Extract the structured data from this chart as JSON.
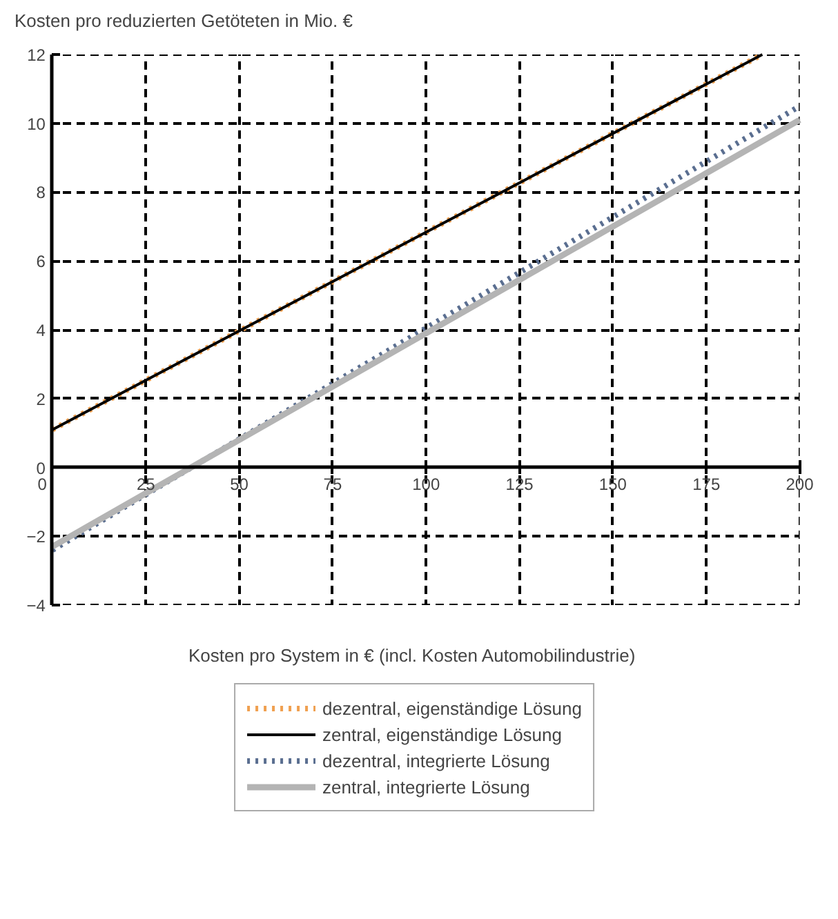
{
  "chart_data": {
    "type": "line",
    "xlabel": "Kosten pro System in € (incl. Kosten  Automobilindustrie)",
    "ylabel": "Kosten pro reduzierten Getöteten in Mio. €",
    "xlim": [
      0,
      200
    ],
    "ylim": [
      -4,
      12
    ],
    "xticks": [
      0,
      25,
      50,
      75,
      100,
      125,
      150,
      175,
      200
    ],
    "yticks": [
      -4,
      -2,
      0,
      2,
      4,
      6,
      8,
      10,
      12
    ],
    "grid": true,
    "legend": "bottom",
    "marker": "none",
    "series": [
      {
        "name": "dezentral, eigenständige Lösung",
        "color": "#f0a050",
        "line_style": "dotted",
        "x": [
          0,
          190
        ],
        "values": [
          1.1,
          12
        ]
      },
      {
        "name": "zentral, eigenständige Lösung",
        "color": "#000000",
        "line_style": "solid",
        "x": [
          0,
          190
        ],
        "values": [
          1.1,
          12
        ]
      },
      {
        "name": "dezentral, integrierte Lösung",
        "color": "#5a6e90",
        "line_style": "dotted",
        "x": [
          0,
          200
        ],
        "values": [
          -2.4,
          10.5
        ]
      },
      {
        "name": "zentral, integrierte Lösung",
        "color": "#b4b4b4",
        "line_style": "solid",
        "x": [
          0,
          200
        ],
        "values": [
          -2.3,
          10.1
        ]
      }
    ]
  }
}
